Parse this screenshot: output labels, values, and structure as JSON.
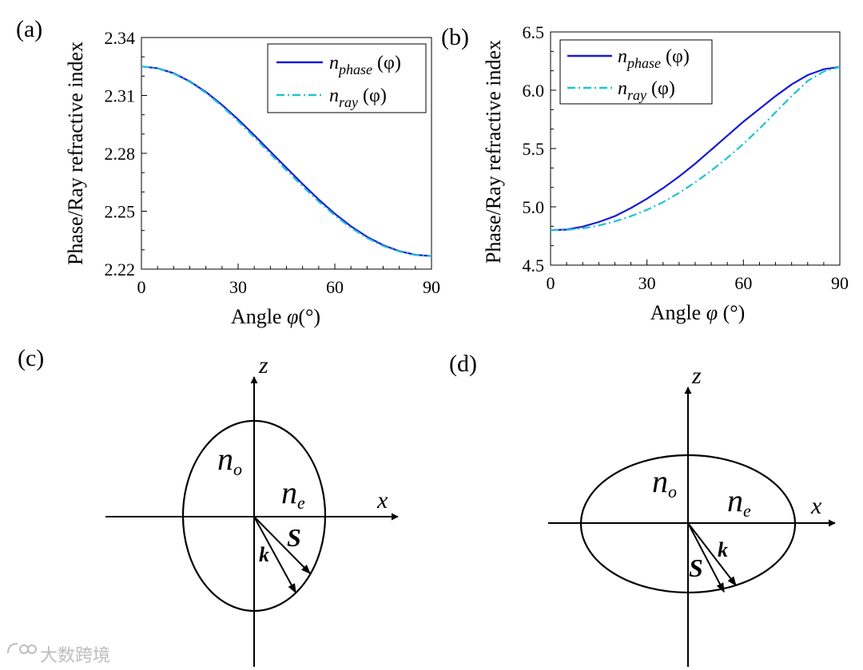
{
  "colors": {
    "phase": "#1a1ad6",
    "ray": "#1fc4cf",
    "axis": "#000000",
    "watermark": "#bdbdbd"
  },
  "chart_data": [
    {
      "panel_label": "(a)",
      "type": "line",
      "xlabel_prefix": "Angle ",
      "xlabel_var": "φ",
      "xlabel_suffix": "(°)",
      "ylabel": "Phase/Ray refractive index",
      "xlim": [
        0,
        90
      ],
      "ylim": [
        2.22,
        2.34
      ],
      "xticks": [
        "0",
        "30",
        "60",
        "90"
      ],
      "yticks": [
        "2.22",
        "2.25",
        "2.28",
        "2.31",
        "2.34"
      ],
      "legend_position": "top-right",
      "series": [
        {
          "name": "n_phase(φ)",
          "n": "n",
          "sub": "phase",
          "arg": " (φ)",
          "style": "solid",
          "x": [
            0,
            5,
            10,
            15,
            20,
            25,
            30,
            35,
            40,
            45,
            50,
            55,
            60,
            65,
            70,
            75,
            80,
            85,
            90
          ],
          "y": [
            2.325,
            2.3241,
            2.3215,
            2.3173,
            2.3118,
            2.3051,
            2.2976,
            2.2894,
            2.2809,
            2.2725,
            2.2641,
            2.2561,
            2.2487,
            2.2422,
            2.2367,
            2.2324,
            2.2293,
            2.2274,
            2.2268
          ]
        },
        {
          "name": "n_ray(φ)",
          "n": "n",
          "sub": "ray",
          "arg": " (φ)",
          "style": "dashdot",
          "x": [
            0,
            5,
            10,
            15,
            20,
            25,
            30,
            35,
            40,
            45,
            50,
            55,
            60,
            65,
            70,
            75,
            80,
            85,
            90
          ],
          "y": [
            2.325,
            2.324,
            2.3213,
            2.317,
            2.3113,
            2.3044,
            2.2966,
            2.2883,
            2.2797,
            2.2712,
            2.2629,
            2.255,
            2.2478,
            2.2414,
            2.2361,
            2.232,
            2.2291,
            2.2273,
            2.2268
          ]
        }
      ]
    },
    {
      "panel_label": "(b)",
      "type": "line",
      "xlabel_prefix": "Angle ",
      "xlabel_var": "φ",
      "xlabel_suffix": "  (°)",
      "ylabel": "Phase/Ray refractive index",
      "xlim": [
        0,
        90
      ],
      "ylim": [
        4.5,
        6.5
      ],
      "xticks": [
        "0",
        "30",
        "60",
        "90"
      ],
      "yticks": [
        "4.5",
        "5.0",
        "5.5",
        "6.0",
        "6.5"
      ],
      "legend_position": "top-left",
      "series": [
        {
          "name": "n_phase(φ)",
          "n": "n",
          "sub": "phase",
          "arg": " (φ)",
          "style": "solid",
          "x": [
            0,
            5,
            10,
            15,
            20,
            25,
            30,
            35,
            40,
            45,
            50,
            55,
            60,
            65,
            70,
            75,
            80,
            85,
            90
          ],
          "y": [
            4.8,
            4.805,
            4.83,
            4.87,
            4.92,
            4.99,
            5.07,
            5.16,
            5.26,
            5.37,
            5.49,
            5.61,
            5.73,
            5.84,
            5.95,
            6.05,
            6.13,
            6.18,
            6.2
          ]
        },
        {
          "name": "n_ray(φ)",
          "n": "n",
          "sub": "ray",
          "arg": " (φ)",
          "style": "dashdot",
          "x": [
            0,
            5,
            10,
            15,
            20,
            25,
            30,
            35,
            40,
            45,
            50,
            55,
            60,
            65,
            70,
            75,
            80,
            85,
            90
          ],
          "y": [
            4.8,
            4.802,
            4.815,
            4.84,
            4.875,
            4.92,
            4.975,
            5.04,
            5.12,
            5.21,
            5.31,
            5.42,
            5.54,
            5.67,
            5.81,
            5.95,
            6.08,
            6.16,
            6.2
          ]
        }
      ]
    }
  ],
  "diagrams": [
    {
      "panel_label": "(c)",
      "z_label": "z",
      "x_label": "x",
      "n_o": "n",
      "n_o_sub": "o",
      "n_e": "n",
      "n_e_sub": "e",
      "s_label": "S",
      "k_label": "k"
    },
    {
      "panel_label": "(d)",
      "z_label": "z",
      "x_label": "x",
      "n_o": "n",
      "n_o_sub": "o",
      "n_e": "n",
      "n_e_sub": "e",
      "s_label": "S",
      "k_label": "k"
    }
  ],
  "watermark": {
    "text": "大数跨境"
  }
}
